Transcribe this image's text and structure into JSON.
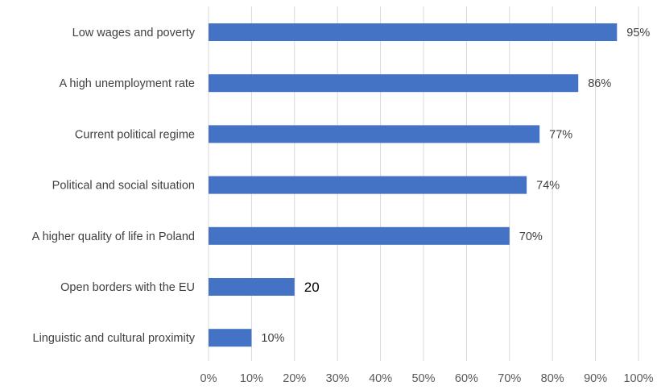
{
  "chart_data": {
    "type": "bar",
    "orientation": "horizontal",
    "categories": [
      "Low wages and poverty",
      "A high unemployment rate",
      "Current political  regime",
      "Political and social situation",
      "A higher quality of life in Poland",
      "Open borders with the EU",
      "Linguistic and cultural proximity"
    ],
    "values": [
      95,
      86,
      77,
      74,
      70,
      20,
      10
    ],
    "data_labels": [
      "95%",
      "86%",
      "77%",
      "74%",
      "70%",
      "20",
      "10%"
    ],
    "x_ticks": [
      "0%",
      "10%",
      "20%",
      "30%",
      "40%",
      "50%",
      "60%",
      "70%",
      "80%",
      "90%",
      "100%"
    ],
    "xlim": [
      0,
      100
    ],
    "title": "",
    "xlabel": "",
    "ylabel": "",
    "grid": "vertical",
    "legend": "none",
    "bar_color": "#4472C4",
    "grid_color": "#D9D9D9"
  }
}
